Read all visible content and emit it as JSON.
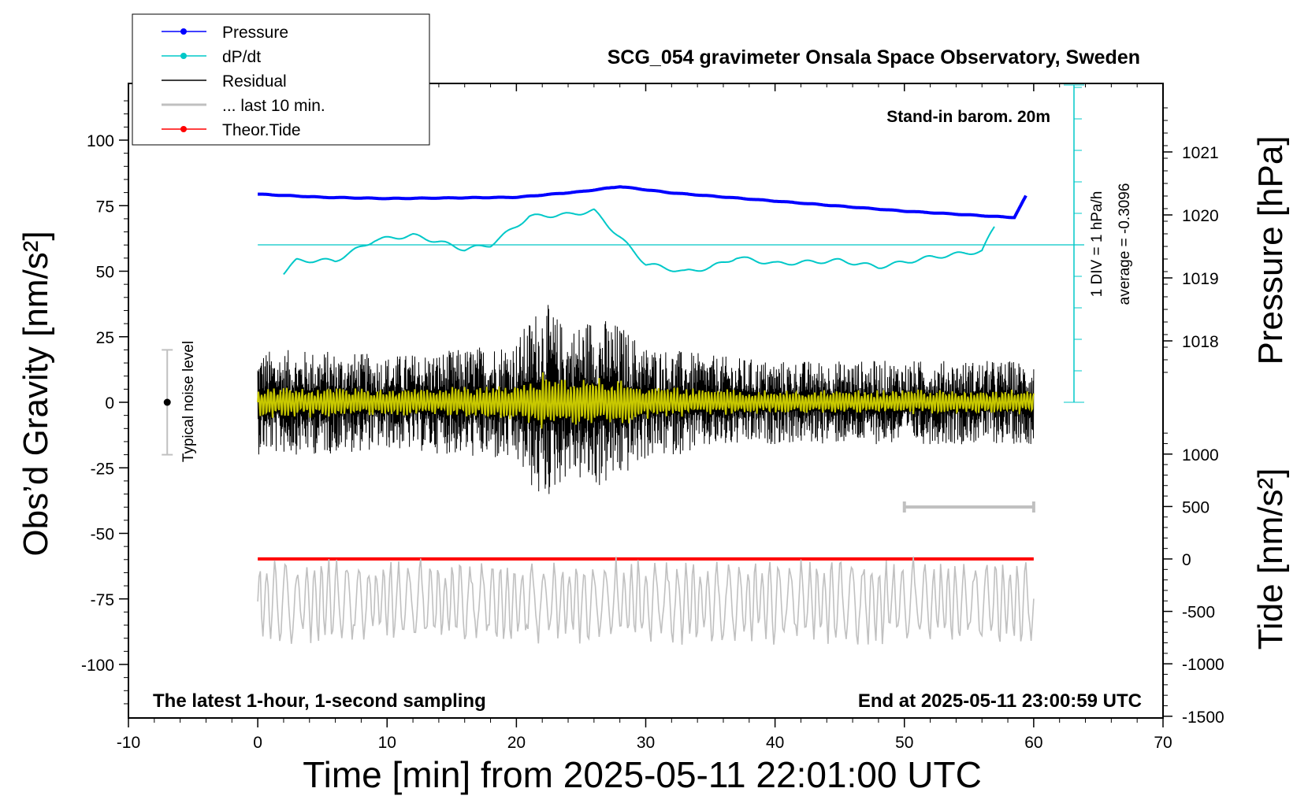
{
  "chart_data": {
    "type": "line",
    "title": "SCG_054 gravimeter Onsala Space Observatory, Sweden",
    "xlabel": "Time [min] from 2025-05-11 22:01:00 UTC",
    "ylabel_left": "Obs’d Gravity [nm/s²]",
    "ylabel_right_pressure": "Pressure [hPa]",
    "ylabel_right_tide": "Tide [nm/s²]",
    "xlim": [
      -10,
      70
    ],
    "ylim": [
      -120,
      120
    ],
    "x_ticks": [
      "-10",
      "0",
      "10",
      "20",
      "30",
      "40",
      "50",
      "60",
      "70"
    ],
    "y_ticks": [
      "100",
      "75",
      "50",
      "25",
      "0",
      "-25",
      "-50",
      "-75",
      "-100"
    ],
    "pressure_ticks": [
      "1021",
      "1020",
      "1019",
      "1018"
    ],
    "tide_ticks": [
      "1000",
      "500",
      "0",
      "-500",
      "-1000",
      "-1500"
    ],
    "legend_position": "top-left",
    "legend": [
      {
        "label": "Pressure",
        "color": "#0000ff",
        "marker": true
      },
      {
        "label": "dP/dt",
        "color": "#00c8c8",
        "marker": true
      },
      {
        "label": "Residual",
        "color": "#000000",
        "marker": false
      },
      {
        "label": "... last 10 min.",
        "color": "#c0c0c0",
        "marker": false
      },
      {
        "label": "Theor.Tide",
        "color": "#ff0000",
        "marker": true
      }
    ],
    "annotations": {
      "barometer": "Stand-in barom. 20m",
      "scale_div": "1 DIV = 1 hPa/h",
      "average": "average = -0.3096",
      "noise": "Typical noise level",
      "bottom_left": "The latest 1-hour, 1-second sampling",
      "bottom_right": "End at 2025-05-11 23:00:59 UTC"
    },
    "series": [
      {
        "name": "Pressure",
        "unit": "hPa",
        "x": [
          0,
          5,
          10,
          15,
          20,
          25,
          28,
          32,
          40,
          50,
          55,
          57.5,
          58.5,
          59.5
        ],
        "y": [
          1020.33,
          1020.28,
          1020.26,
          1020.27,
          1020.28,
          1020.37,
          1020.45,
          1020.35,
          1020.22,
          1020.06,
          1020.0,
          1019.97,
          1019.96,
          1020.34
        ]
      },
      {
        "name": "dP/dt",
        "unit": "hPa/h",
        "x": [
          2,
          3,
          6,
          9,
          12,
          14,
          16,
          18,
          21,
          24,
          26,
          30,
          33,
          35,
          37,
          40,
          45,
          48,
          52,
          56,
          57
        ],
        "y": [
          -0.89,
          -0.5,
          -0.5,
          0.15,
          0.3,
          0.1,
          -0.14,
          0.0,
          0.9,
          0.96,
          1.08,
          -0.6,
          -0.86,
          -0.72,
          -0.4,
          -0.6,
          -0.5,
          -0.7,
          -0.4,
          -0.2,
          0.6
        ]
      },
      {
        "name": "Residual",
        "unit": "nm/s²",
        "x": [
          0,
          5,
          10,
          15,
          20,
          22,
          24,
          26,
          28,
          30,
          35,
          40,
          45,
          50,
          55,
          60
        ],
        "y_envelope": [
          20,
          20,
          18,
          20,
          24,
          40,
          28,
          34,
          30,
          22,
          18,
          16,
          16,
          16,
          16,
          16
        ]
      },
      {
        "name": "... last 10 min.",
        "unit": "nm/s²",
        "x": [
          0,
          60
        ],
        "y_range": [
          -95,
          -57
        ]
      },
      {
        "name": "Theor.Tide",
        "unit": "nm/s²",
        "x": [
          0,
          60
        ],
        "y": [
          0,
          0
        ]
      }
    ],
    "noise_level": {
      "x": -7,
      "y": 0,
      "range": [
        -20,
        20
      ]
    },
    "window_bar": {
      "x": [
        50,
        60
      ]
    }
  }
}
